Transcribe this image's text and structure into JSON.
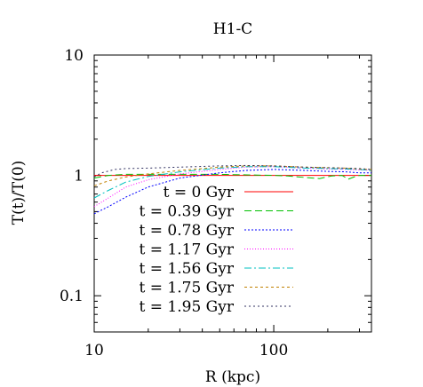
{
  "chart_data": {
    "type": "line",
    "title": "H1-C",
    "xlabel": "R (kpc)",
    "ylabel": "T(t)/T(0)",
    "xscale": "log",
    "yscale": "log",
    "xlim": [
      10,
      350
    ],
    "ylim": [
      0.05,
      10
    ],
    "x_ticks": [
      {
        "value": 10,
        "label": "10"
      },
      {
        "value": 100,
        "label": "100"
      }
    ],
    "y_ticks": [
      {
        "value": 0.1,
        "label": "0.1"
      },
      {
        "value": 1,
        "label": "1"
      },
      {
        "value": 10,
        "label": "10"
      }
    ],
    "grid": false,
    "legend_position": "center",
    "series": [
      {
        "name": "t = 0 Gyr",
        "color": "#ff0000",
        "dash": "solid",
        "x": [
          10,
          15,
          20,
          30,
          50,
          70,
          100,
          150,
          200,
          250,
          300,
          350
        ],
        "y": [
          1.0,
          1.0,
          1.0,
          1.0,
          1.0,
          1.0,
          1.0,
          1.0,
          1.0,
          1.0,
          1.0,
          1.0
        ]
      },
      {
        "name": "t = 0.39 Gyr",
        "color": "#00c000",
        "dash": "8,4",
        "x": [
          10,
          12,
          15,
          20,
          30,
          50,
          70,
          100,
          120,
          150,
          180,
          210,
          240,
          260,
          280,
          300,
          330,
          350
        ],
        "y": [
          0.95,
          1.0,
          1.02,
          1.02,
          1.02,
          1.02,
          1.01,
          1.0,
          0.99,
          0.96,
          0.94,
          0.99,
          1.0,
          0.93,
          0.97,
          1.0,
          1.0,
          1.0
        ]
      },
      {
        "name": "t = 0.78 Gyr",
        "color": "#0000ff",
        "dash": "2,2",
        "x": [
          10,
          12,
          15,
          20,
          30,
          50,
          70,
          100,
          150,
          200,
          250,
          300,
          350
        ],
        "y": [
          0.48,
          0.55,
          0.66,
          0.8,
          0.95,
          1.05,
          1.1,
          1.12,
          1.1,
          1.08,
          1.07,
          1.05,
          1.05
        ]
      },
      {
        "name": "t = 1.17 Gyr",
        "color": "#ff00ff",
        "dash": "1,2",
        "x": [
          10,
          12,
          15,
          20,
          30,
          50,
          70,
          100,
          150,
          200,
          250,
          300,
          350
        ],
        "y": [
          0.55,
          0.65,
          0.8,
          0.92,
          1.03,
          1.12,
          1.17,
          1.18,
          1.15,
          1.13,
          1.12,
          1.11,
          1.1
        ]
      },
      {
        "name": "t = 1.56 Gyr",
        "color": "#00c0c0",
        "dash": "8,3,2,3",
        "x": [
          10,
          12,
          15,
          20,
          30,
          50,
          70,
          100,
          150,
          200,
          250,
          300,
          350
        ],
        "y": [
          0.65,
          0.75,
          0.88,
          0.98,
          1.07,
          1.15,
          1.18,
          1.18,
          1.15,
          1.14,
          1.13,
          1.12,
          1.1
        ]
      },
      {
        "name": "t = 1.75 Gyr",
        "color": "#c08000",
        "dash": "3,3",
        "x": [
          10,
          12,
          15,
          20,
          30,
          50,
          70,
          100,
          150,
          200,
          250,
          300,
          350
        ],
        "y": [
          0.82,
          0.9,
          0.97,
          1.03,
          1.1,
          1.17,
          1.2,
          1.2,
          1.17,
          1.16,
          1.15,
          1.13,
          1.12
        ]
      },
      {
        "name": "t = 1.95 Gyr",
        "color": "#303060",
        "dash": "2,3",
        "x": [
          10,
          11,
          13,
          15,
          20,
          30,
          50,
          70,
          100,
          150,
          200,
          250,
          300,
          350
        ],
        "y": [
          0.97,
          1.05,
          1.12,
          1.14,
          1.15,
          1.17,
          1.2,
          1.21,
          1.2,
          1.17,
          1.16,
          1.15,
          1.14,
          1.12
        ]
      }
    ]
  }
}
